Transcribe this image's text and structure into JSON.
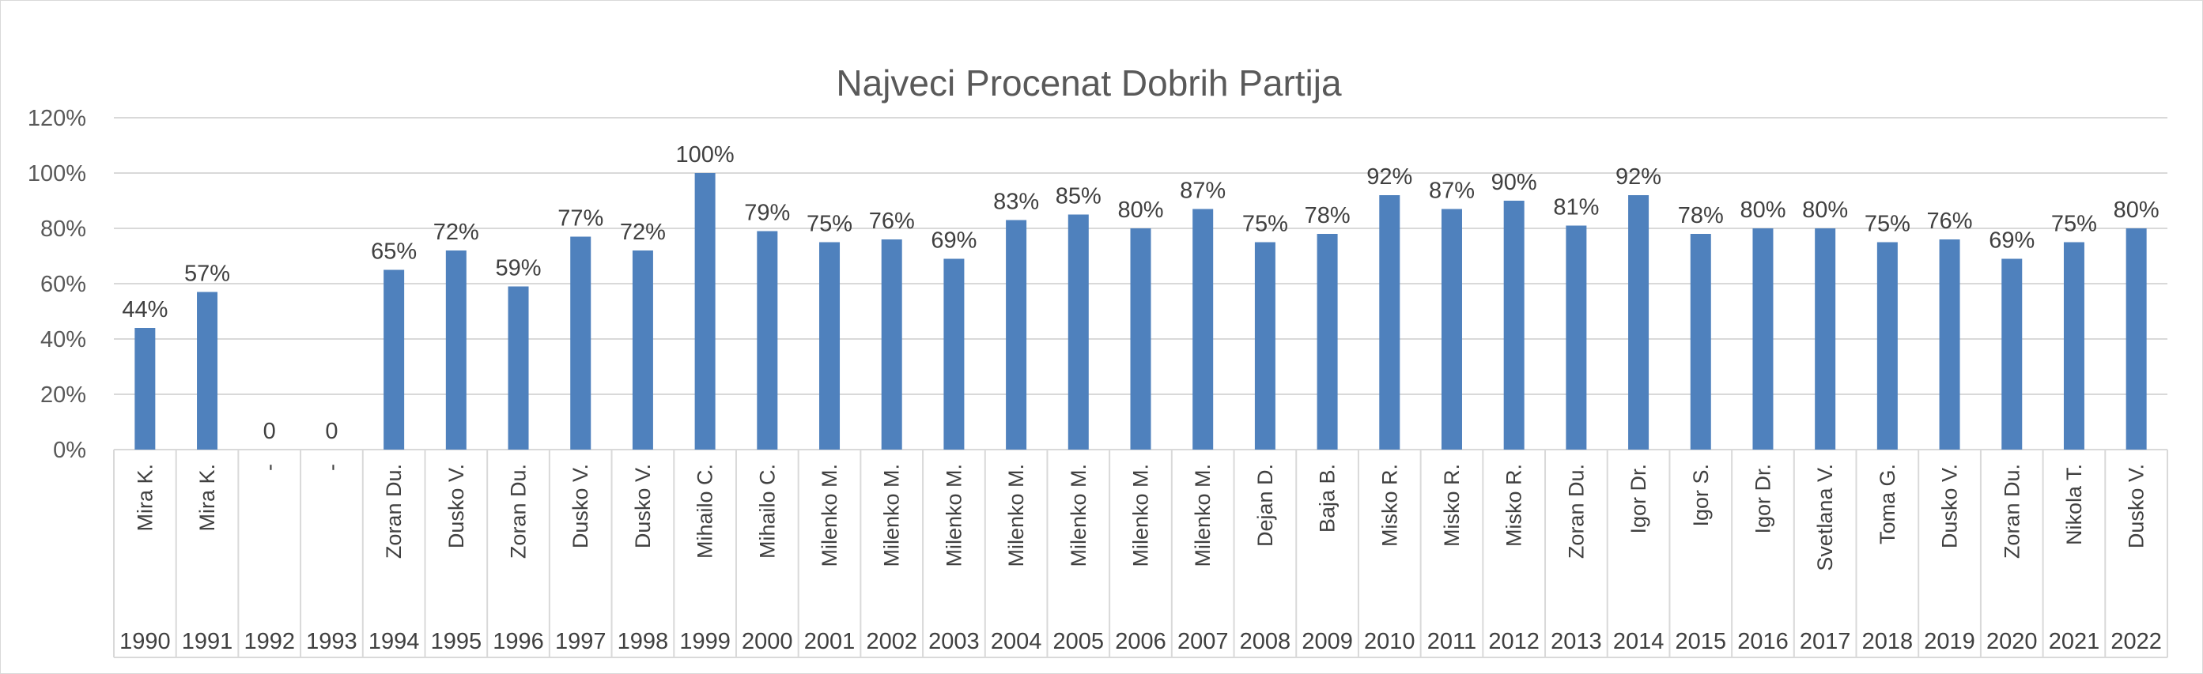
{
  "chart_data": {
    "type": "bar",
    "title": "Najveci Procenat Dobrih Partija",
    "y_ticks": [
      "0%",
      "20%",
      "40%",
      "60%",
      "80%",
      "100%",
      "120%"
    ],
    "ylim": [
      0,
      120
    ],
    "grid": true,
    "legend": "none",
    "bar_color": "#4f81bd",
    "categories": [
      {
        "year": "1990",
        "name": "Mira K.",
        "value": 44,
        "label": "44%"
      },
      {
        "year": "1991",
        "name": "Mira K.",
        "value": 57,
        "label": "57%"
      },
      {
        "year": "1992",
        "name": "-",
        "value": 0,
        "label": "0"
      },
      {
        "year": "1993",
        "name": "-",
        "value": 0,
        "label": "0"
      },
      {
        "year": "1994",
        "name": "Zoran Du.",
        "value": 65,
        "label": "65%"
      },
      {
        "year": "1995",
        "name": "Dusko V.",
        "value": 72,
        "label": "72%"
      },
      {
        "year": "1996",
        "name": "Zoran Du.",
        "value": 59,
        "label": "59%"
      },
      {
        "year": "1997",
        "name": "Dusko V.",
        "value": 77,
        "label": "77%"
      },
      {
        "year": "1998",
        "name": "Dusko V.",
        "value": 72,
        "label": "72%"
      },
      {
        "year": "1999",
        "name": "Mihailo C.",
        "value": 100,
        "label": "100%"
      },
      {
        "year": "2000",
        "name": "Mihailo C.",
        "value": 79,
        "label": "79%"
      },
      {
        "year": "2001",
        "name": "Milenko M.",
        "value": 75,
        "label": "75%"
      },
      {
        "year": "2002",
        "name": "Milenko M.",
        "value": 76,
        "label": "76%"
      },
      {
        "year": "2003",
        "name": "Milenko M.",
        "value": 69,
        "label": "69%"
      },
      {
        "year": "2004",
        "name": "Milenko M.",
        "value": 83,
        "label": "83%"
      },
      {
        "year": "2005",
        "name": "Milenko M.",
        "value": 85,
        "label": "85%"
      },
      {
        "year": "2006",
        "name": "Milenko M.",
        "value": 80,
        "label": "80%"
      },
      {
        "year": "2007",
        "name": "Milenko M.",
        "value": 87,
        "label": "87%"
      },
      {
        "year": "2008",
        "name": "Dejan D.",
        "value": 75,
        "label": "75%"
      },
      {
        "year": "2009",
        "name": "Baja B.",
        "value": 78,
        "label": "78%"
      },
      {
        "year": "2010",
        "name": "Misko R.",
        "value": 92,
        "label": "92%"
      },
      {
        "year": "2011",
        "name": "Misko R.",
        "value": 87,
        "label": "87%"
      },
      {
        "year": "2012",
        "name": "Misko R.",
        "value": 90,
        "label": "90%"
      },
      {
        "year": "2013",
        "name": "Zoran Du.",
        "value": 81,
        "label": "81%"
      },
      {
        "year": "2014",
        "name": "Igor Dr.",
        "value": 92,
        "label": "92%"
      },
      {
        "year": "2015",
        "name": "Igor S.",
        "value": 78,
        "label": "78%"
      },
      {
        "year": "2016",
        "name": "Igor Dr.",
        "value": 80,
        "label": "80%"
      },
      {
        "year": "2017",
        "name": "Svetlana V.",
        "value": 80,
        "label": "80%"
      },
      {
        "year": "2018",
        "name": "Toma G.",
        "value": 75,
        "label": "75%"
      },
      {
        "year": "2019",
        "name": "Dusko V.",
        "value": 76,
        "label": "76%"
      },
      {
        "year": "2020",
        "name": "Zoran Du.",
        "value": 69,
        "label": "69%"
      },
      {
        "year": "2021",
        "name": "Nikola T.",
        "value": 75,
        "label": "75%"
      },
      {
        "year": "2022",
        "name": "Dusko V.",
        "value": 80,
        "label": "80%"
      }
    ]
  }
}
